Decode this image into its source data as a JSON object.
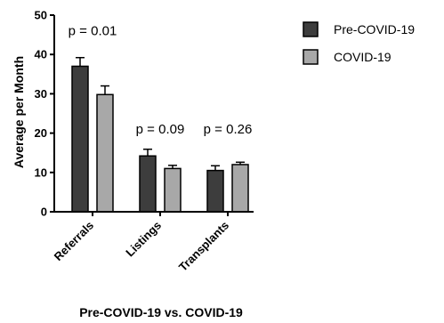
{
  "chart_data": {
    "type": "bar",
    "title": "",
    "xlabel": "Pre-COVID-19 vs. COVID-19",
    "ylabel": "Average per Month",
    "ylim": [
      0,
      50
    ],
    "yticks": [
      "0",
      "10",
      "20",
      "30",
      "40",
      "50"
    ],
    "categories": [
      "Referrals",
      "Listings",
      "Transplants"
    ],
    "series": [
      {
        "name": "Pre-COVID-19",
        "values": [
          37.0,
          14.2,
          10.5
        ],
        "errors": [
          2.2,
          1.7,
          1.2
        ],
        "color": "#3d3d3d"
      },
      {
        "name": "COVID-19",
        "values": [
          29.8,
          11.0,
          12.0
        ],
        "errors": [
          2.2,
          0.8,
          0.6
        ],
        "color": "#a8a8a8"
      }
    ],
    "annotations": [
      {
        "text": "p = 0.01",
        "category": "Referrals",
        "y": 46
      },
      {
        "text": "p = 0.09",
        "category": "Listings",
        "y": 21
      },
      {
        "text": "p = 0.26",
        "category": "Transplants",
        "y": 21
      }
    ],
    "legend_position": "top-right",
    "grid": false
  }
}
